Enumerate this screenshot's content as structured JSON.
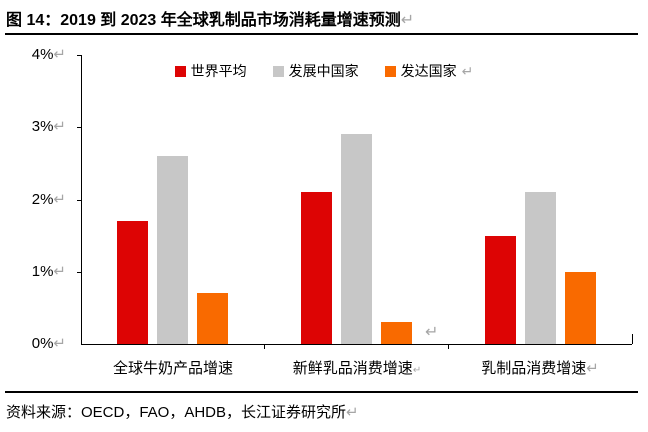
{
  "title": {
    "text": "图 14：2019 到 2023 年全球乳制品市场消耗量增速预测",
    "return_mark": "↵"
  },
  "source": {
    "text": "资料来源：OECD，FAO，AHDB，长江证券研究所",
    "return_mark": "↵"
  },
  "chart_data": {
    "type": "bar",
    "categories": [
      "全球牛奶产品增速",
      "新鲜乳品消费增速",
      "乳制品消费增速"
    ],
    "series": [
      {
        "name": "世界平均",
        "color": "#DD0404",
        "values": [
          1.7,
          2.1,
          1.5
        ]
      },
      {
        "name": "发展中国家",
        "color": "#C7C7C7",
        "values": [
          2.6,
          2.9,
          2.1
        ]
      },
      {
        "name": "发达国家",
        "color": "#F96A00",
        "values": [
          0.7,
          0.3,
          1.0
        ]
      }
    ],
    "title": "",
    "xlabel": "",
    "ylabel": "",
    "ylim": [
      0,
      4
    ],
    "ytick_step": 1,
    "ytick_labels": [
      "0%",
      "1%",
      "2%",
      "3%",
      "4%"
    ],
    "legend_position": "top-center",
    "grid": false
  },
  "annotations": {
    "ytick_return_mark": "↵",
    "legend_return_mark": "↵",
    "stray_return_mark": "↵",
    "category_return_marks": [
      "",
      "↵",
      "↵"
    ]
  },
  "colors": {
    "axis": "#000000",
    "rule": "#000000",
    "text": "#000000",
    "return_mark": "#A6A6A6",
    "background": "#FFFFFF"
  }
}
